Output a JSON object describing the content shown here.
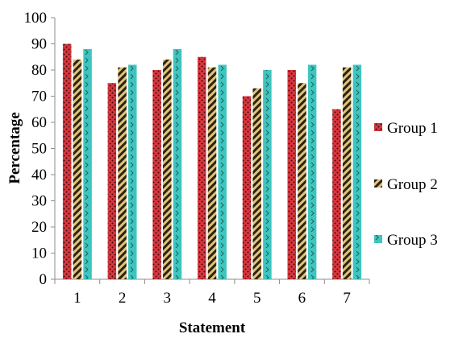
{
  "chart_data": {
    "type": "bar",
    "title": "",
    "xlabel": "Statement",
    "ylabel": "Percentage",
    "categories": [
      "1",
      "2",
      "3",
      "4",
      "5",
      "6",
      "7"
    ],
    "ylim": [
      0,
      100
    ],
    "yticks": [
      "0",
      "10",
      "20",
      "30",
      "40",
      "50",
      "60",
      "70",
      "80",
      "90",
      "100"
    ],
    "grid": false,
    "legend": "right",
    "series": [
      {
        "name": "Group 1",
        "values": [
          90,
          75,
          80,
          85,
          70,
          80,
          65
        ],
        "color": "#d9363e",
        "pattern": "red-dots"
      },
      {
        "name": "Group 2",
        "values": [
          84,
          81,
          84,
          81,
          73,
          75,
          81
        ],
        "color": "#c9a04a",
        "pattern": "diagonal-stripes"
      },
      {
        "name": "Group 3",
        "values": [
          88,
          82,
          88,
          82,
          80,
          82,
          82
        ],
        "color": "#3ec5bf",
        "pattern": "teal-chevrons"
      }
    ]
  }
}
